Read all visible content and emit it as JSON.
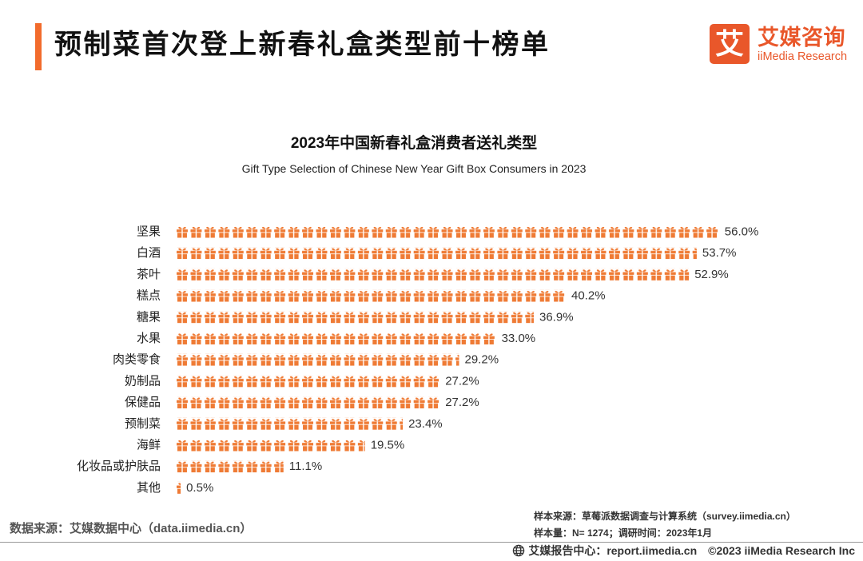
{
  "page": {
    "title": "预制菜首次登上新春礼盒类型前十榜单",
    "accent_color": "#F26B2C"
  },
  "logo": {
    "mark_char": "艾",
    "name_cn": "艾媒咨询",
    "name_en": "iiMedia Research",
    "color": "#E9572A"
  },
  "chart_data": {
    "type": "bar",
    "orientation": "horizontal",
    "mark": "gift-icon",
    "color": "#EF7B35",
    "title": "2023年中国新春礼盒消费者送礼类型",
    "subtitle": "Gift Type Selection of Chinese New Year Gift Box Consumers in 2023",
    "unit": "%",
    "categories": [
      "坚果",
      "白酒",
      "茶叶",
      "糕点",
      "糖果",
      "水果",
      "肉类零食",
      "奶制品",
      "保健品",
      "预制菜",
      "海鲜",
      "化妆品或护肤品",
      "其他"
    ],
    "values": [
      56.0,
      53.7,
      52.9,
      40.2,
      36.9,
      33.0,
      29.2,
      27.2,
      27.2,
      23.4,
      19.5,
      11.1,
      0.5
    ],
    "value_labels": [
      "56.0%",
      "53.7%",
      "52.9%",
      "40.2%",
      "36.9%",
      "33.0%",
      "29.2%",
      "27.2%",
      "27.2%",
      "23.4%",
      "19.5%",
      "11.1%",
      "0.5%"
    ]
  },
  "footer": {
    "sample_source": "样本来源：草莓派数据调查与计算系统（survey.iimedia.cn）",
    "sample_size": "样本量：N= 1274；调研时间：2023年1月",
    "data_source": "数据来源：艾媒数据中心（data.iimedia.cn）",
    "report_center": "艾媒报告中心：report.iimedia.cn",
    "copyright": "©2023 iiMedia Research Inc",
    "globe_icon": "globe-icon"
  }
}
